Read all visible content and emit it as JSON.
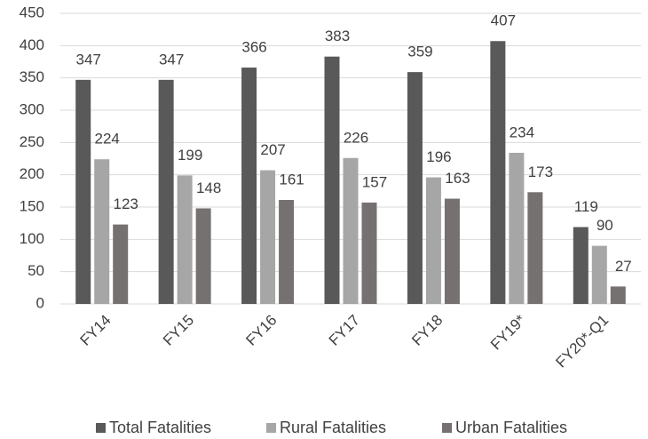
{
  "chart_data": {
    "type": "bar",
    "categories": [
      "FY14",
      "FY15",
      "FY16",
      "FY17",
      "FY18",
      "FY19*",
      "FY20*-Q1"
    ],
    "series": [
      {
        "name": "Total Fatalities",
        "color": "#595959",
        "values": [
          347,
          347,
          366,
          383,
          359,
          407,
          119
        ]
      },
      {
        "name": "Rural Fatalities",
        "color": "#a6a6a6",
        "values": [
          224,
          199,
          207,
          226,
          196,
          234,
          90
        ]
      },
      {
        "name": "Urban Fatalities",
        "color": "#767171",
        "values": [
          123,
          148,
          161,
          157,
          163,
          173,
          27
        ]
      }
    ],
    "ylim": [
      0,
      450
    ],
    "yticks": [
      0,
      50,
      100,
      150,
      200,
      250,
      300,
      350,
      400,
      450
    ],
    "grid": true,
    "legend": "bottom"
  }
}
